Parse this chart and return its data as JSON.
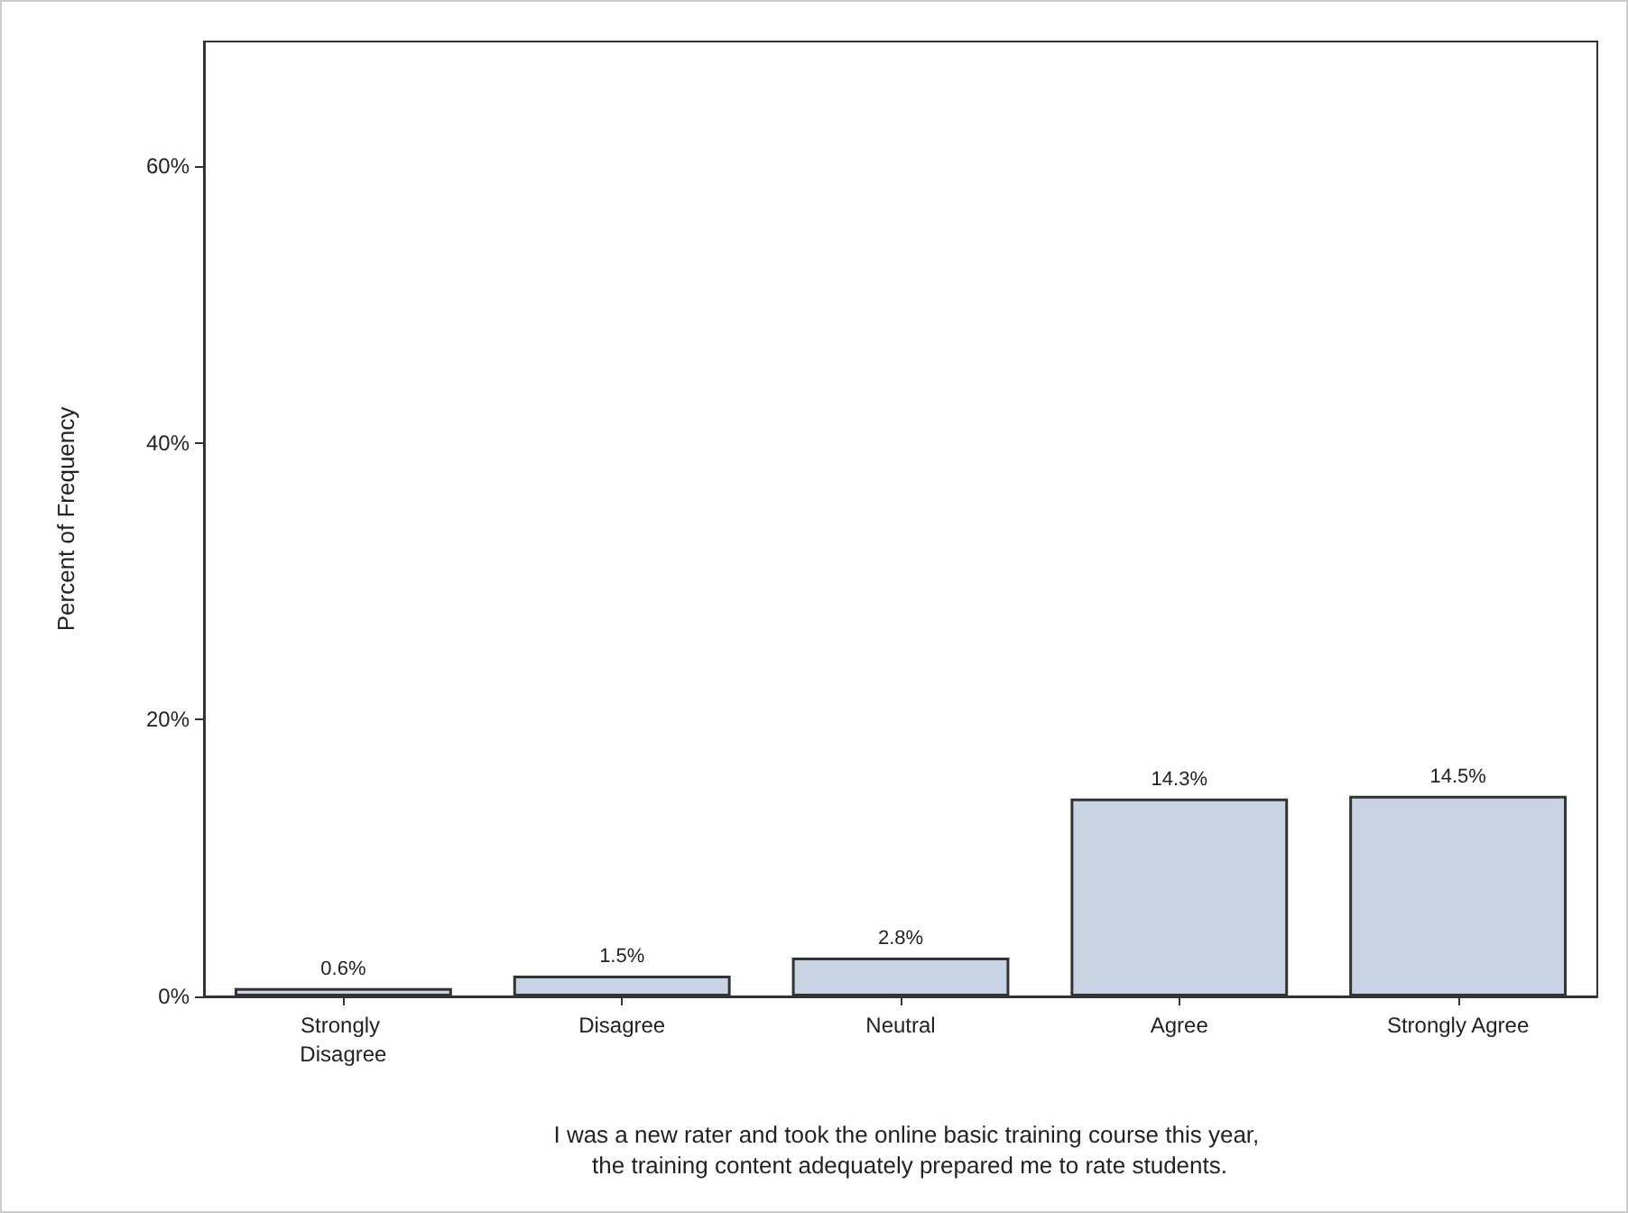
{
  "chart_data": {
    "type": "bar",
    "xlabel": "I was a new rater and took the online basic training course this year, the training content adequately prepared me to rate students.",
    "ylabel": "Percent of Frequency",
    "categories": [
      "Strongly Disagree",
      "Disagree",
      "Neutral",
      "Agree",
      "Strongly Agree"
    ],
    "values": [
      0.6,
      1.5,
      2.8,
      14.3,
      14.5
    ],
    "value_labels": [
      "0.6%",
      "1.5%",
      "2.8%",
      "14.3%",
      "14.5%"
    ],
    "color": "#c8d4e4",
    "ylim": [
      0,
      69
    ],
    "yticks": [
      {
        "value": 0,
        "label": "0%"
      },
      {
        "value": 20,
        "label": "20%"
      },
      {
        "value": 40,
        "label": "40%"
      },
      {
        "value": 60,
        "label": "60%"
      }
    ],
    "grid": false
  }
}
